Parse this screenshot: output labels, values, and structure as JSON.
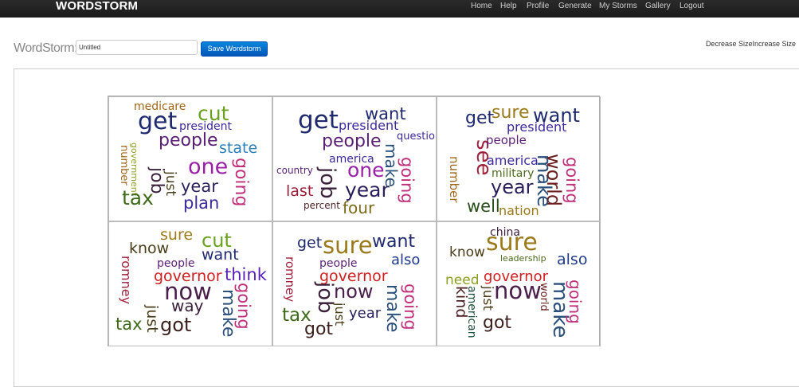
{
  "navbar": {
    "brand": "WORDSTORM",
    "links": [
      "Home",
      "Help",
      "Profile",
      "Generate",
      "My Storms",
      "Gallery",
      "Logout"
    ]
  },
  "toolbar": {
    "title_label": "WordStorm:",
    "name_value": "Untitled",
    "save_label": "Save Wordstorm",
    "decrease_label": "Decrease Size",
    "increase_label": "Increase Size"
  },
  "storms": [
    {
      "words": [
        {
          "t": "medicare",
          "c": "#a0661a"
        },
        {
          "t": "cut",
          "c": "#6aa120"
        },
        {
          "t": "get",
          "c": "#1f2a6e"
        },
        {
          "t": "president",
          "c": "#3c2a9c"
        },
        {
          "t": "people",
          "c": "#5a1f74"
        },
        {
          "t": "state",
          "c": "#2d7fb8"
        },
        {
          "t": "number",
          "c": "#a0661a"
        },
        {
          "t": "government",
          "c": "#8aa020"
        },
        {
          "t": "job",
          "c": "#3a1f3a"
        },
        {
          "t": "just",
          "c": "#4a3d1a"
        },
        {
          "t": "one",
          "c": "#9a1fa8"
        },
        {
          "t": "going",
          "c": "#c0307a"
        },
        {
          "t": "year",
          "c": "#2a1f5a"
        },
        {
          "t": "tax",
          "c": "#3d6a1a"
        },
        {
          "t": "plan",
          "c": "#3c2a9c"
        }
      ]
    },
    {
      "words": [
        {
          "t": "get",
          "c": "#1f2a6e"
        },
        {
          "t": "want",
          "c": "#1f2a6e"
        },
        {
          "t": "president",
          "c": "#3c2a9c"
        },
        {
          "t": "question",
          "c": "#3c2a9c"
        },
        {
          "t": "people",
          "c": "#5a1f74"
        },
        {
          "t": "america",
          "c": "#3c2a9c"
        },
        {
          "t": "make",
          "c": "#2a4f7a"
        },
        {
          "t": "country",
          "c": "#5a1f74"
        },
        {
          "t": "one",
          "c": "#9a1fa8"
        },
        {
          "t": "going",
          "c": "#c0307a"
        },
        {
          "t": "last",
          "c": "#9a1f3a"
        },
        {
          "t": "job",
          "c": "#3a1f3a"
        },
        {
          "t": "year",
          "c": "#2a1f5a"
        },
        {
          "t": "percent",
          "c": "#4a1f1f"
        },
        {
          "t": "four",
          "c": "#7a6a1a"
        }
      ]
    },
    {
      "words": [
        {
          "t": "get",
          "c": "#1f2a6e"
        },
        {
          "t": "sure",
          "c": "#9a7a1a"
        },
        {
          "t": "want",
          "c": "#1f2a6e"
        },
        {
          "t": "president",
          "c": "#3c2a9c"
        },
        {
          "t": "see",
          "c": "#a01f3a"
        },
        {
          "t": "people",
          "c": "#5a1f74"
        },
        {
          "t": "america",
          "c": "#3c2a9c"
        },
        {
          "t": "make",
          "c": "#2a4f7a"
        },
        {
          "t": "world",
          "c": "#6a1f1f"
        },
        {
          "t": "going",
          "c": "#c0307a"
        },
        {
          "t": "number",
          "c": "#a0661a"
        },
        {
          "t": "military",
          "c": "#4a6a1a"
        },
        {
          "t": "year",
          "c": "#2a1f5a"
        },
        {
          "t": "well",
          "c": "#2a4f1a"
        },
        {
          "t": "nation",
          "c": "#9a7a1a"
        }
      ]
    },
    {
      "words": [
        {
          "t": "sure",
          "c": "#9a7a1a"
        },
        {
          "t": "cut",
          "c": "#6aa120"
        },
        {
          "t": "know",
          "c": "#4a3d1a"
        },
        {
          "t": "want",
          "c": "#1f2a6e"
        },
        {
          "t": "romney",
          "c": "#a01f3a"
        },
        {
          "t": "people",
          "c": "#5a1f74"
        },
        {
          "t": "governor",
          "c": "#d01f1f"
        },
        {
          "t": "think",
          "c": "#5a1fb8"
        },
        {
          "t": "now",
          "c": "#4a1f4a"
        },
        {
          "t": "way",
          "c": "#3a1f3a"
        },
        {
          "t": "going",
          "c": "#c0307a"
        },
        {
          "t": "make",
          "c": "#2a4f7a"
        },
        {
          "t": "just",
          "c": "#4a3d1a"
        },
        {
          "t": "tax",
          "c": "#3d6a1a"
        },
        {
          "t": "got",
          "c": "#3a1f1a"
        }
      ]
    },
    {
      "words": [
        {
          "t": "get",
          "c": "#1f2a6e"
        },
        {
          "t": "sure",
          "c": "#9a7a1a"
        },
        {
          "t": "want",
          "c": "#1f2a6e"
        },
        {
          "t": "also",
          "c": "#1f3a8a"
        },
        {
          "t": "romney",
          "c": "#a01f3a"
        },
        {
          "t": "people",
          "c": "#5a1f74"
        },
        {
          "t": "governor",
          "c": "#d01f1f"
        },
        {
          "t": "job",
          "c": "#3a1f3a"
        },
        {
          "t": "now",
          "c": "#4a1f4a"
        },
        {
          "t": "going",
          "c": "#c0307a"
        },
        {
          "t": "make",
          "c": "#2a4f7a"
        },
        {
          "t": "just",
          "c": "#4a3d1a"
        },
        {
          "t": "year",
          "c": "#2a1f5a"
        },
        {
          "t": "tax",
          "c": "#3d6a1a"
        },
        {
          "t": "got",
          "c": "#3a1f1a"
        }
      ]
    },
    {
      "words": [
        {
          "t": "china",
          "c": "#3a1f3a"
        },
        {
          "t": "sure",
          "c": "#9a7a1a"
        },
        {
          "t": "know",
          "c": "#4a3d1a"
        },
        {
          "t": "leadership",
          "c": "#4a6a1a"
        },
        {
          "t": "also",
          "c": "#1f3a8a"
        },
        {
          "t": "need",
          "c": "#8aa020"
        },
        {
          "t": "governor",
          "c": "#d01f1f"
        },
        {
          "t": "kind",
          "c": "#4a1f1f"
        },
        {
          "t": "american",
          "c": "#1f4f3a"
        },
        {
          "t": "just",
          "c": "#4a3d1a"
        },
        {
          "t": "now",
          "c": "#4a1f4a"
        },
        {
          "t": "world",
          "c": "#6a1f1f"
        },
        {
          "t": "make",
          "c": "#2a4f7a"
        },
        {
          "t": "going",
          "c": "#c0307a"
        },
        {
          "t": "got",
          "c": "#3a1f1a"
        }
      ]
    }
  ]
}
